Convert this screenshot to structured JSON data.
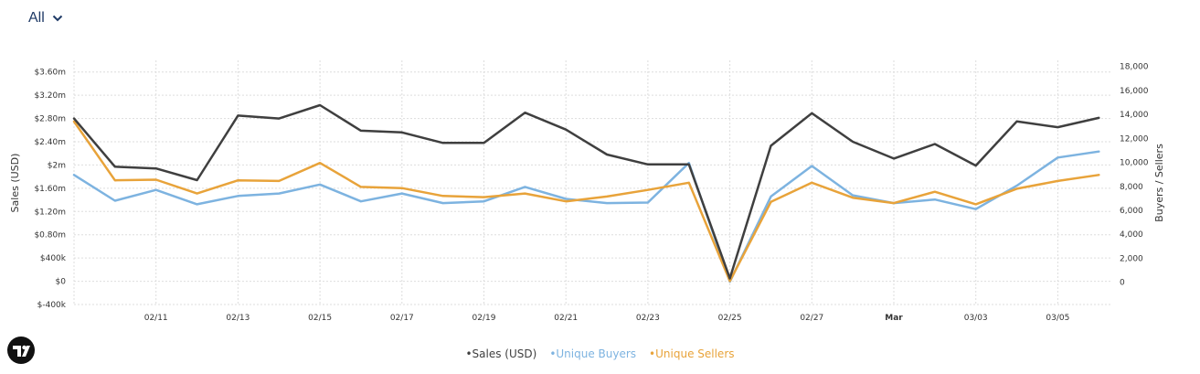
{
  "filter": {
    "label": "All"
  },
  "legend": {
    "items": [
      {
        "label": "•Sales (USD)",
        "color": "#3f3f3f"
      },
      {
        "label": "•Unique Buyers",
        "color": "#7db3e0"
      },
      {
        "label": "•Unique Sellers",
        "color": "#e8a33a"
      }
    ]
  },
  "chart_data": {
    "type": "line",
    "x_ticks": [
      "",
      "02/11",
      "02/13",
      "02/15",
      "02/17",
      "02/19",
      "02/21",
      "02/23",
      "02/25",
      "02/27",
      "Mar",
      "03/03",
      "03/05"
    ],
    "left_axis": {
      "title": "Sales (USD)",
      "unit_label": "USD",
      "tick_values": [
        -400000,
        0,
        400000,
        800000,
        1200000,
        1600000,
        2000000,
        2400000,
        2800000,
        3200000,
        3600000
      ],
      "tick_labels": [
        "$-400k",
        "$0",
        "$400k",
        "$0.80m",
        "$1.20m",
        "$1.60m",
        "$2m",
        "$2.40m",
        "$2.80m",
        "$3.20m",
        "$3.60m"
      ],
      "ylim": [
        -400000,
        3800000
      ]
    },
    "right_axis": {
      "title": "Buyers / Sellers",
      "tick_values": [
        0,
        2000,
        4000,
        6000,
        8000,
        10000,
        12000,
        14000,
        16000,
        18000
      ],
      "tick_labels": [
        "0",
        "2,000",
        "4,000",
        "6,000",
        "8,000",
        "10,000",
        "12,000",
        "14,000",
        "16,000",
        "18,000"
      ],
      "ylim": [
        -1850,
        18500
      ]
    },
    "x_indices": [
      0,
      1,
      2,
      3,
      4,
      5,
      6,
      7,
      8,
      9,
      10,
      11,
      12,
      13,
      14,
      15,
      16,
      17,
      18,
      19,
      20,
      21,
      22,
      23,
      24,
      25
    ],
    "series": [
      {
        "name": "Sales (USD)",
        "axis": "left",
        "color": "#3f3f3f",
        "values": [
          2800000,
          1970000,
          1940000,
          1740000,
          2850000,
          2800000,
          3030000,
          2590000,
          2560000,
          2380000,
          2380000,
          2900000,
          2610000,
          2180000,
          2010000,
          2010000,
          50000,
          2330000,
          2890000,
          2400000,
          2110000,
          2360000,
          1990000,
          2750000,
          2650000,
          2810000
        ]
      },
      {
        "name": "Unique Buyers",
        "axis": "right",
        "color": "#7db3e0",
        "values": [
          8950,
          6800,
          7700,
          6500,
          7200,
          7400,
          8150,
          6750,
          7400,
          6600,
          6750,
          7950,
          6950,
          6600,
          6650,
          9950,
          50,
          7150,
          9700,
          7250,
          6600,
          6900,
          6100,
          8050,
          10400,
          10900
        ]
      },
      {
        "name": "Unique Sellers",
        "axis": "right",
        "color": "#e8a33a",
        "values": [
          13400,
          8500,
          8550,
          7400,
          8500,
          8450,
          9950,
          7950,
          7850,
          7200,
          7100,
          7400,
          6750,
          7150,
          7700,
          8300,
          100,
          6700,
          8300,
          7050,
          6600,
          7550,
          6500,
          7800,
          8450,
          8950
        ]
      }
    ]
  }
}
